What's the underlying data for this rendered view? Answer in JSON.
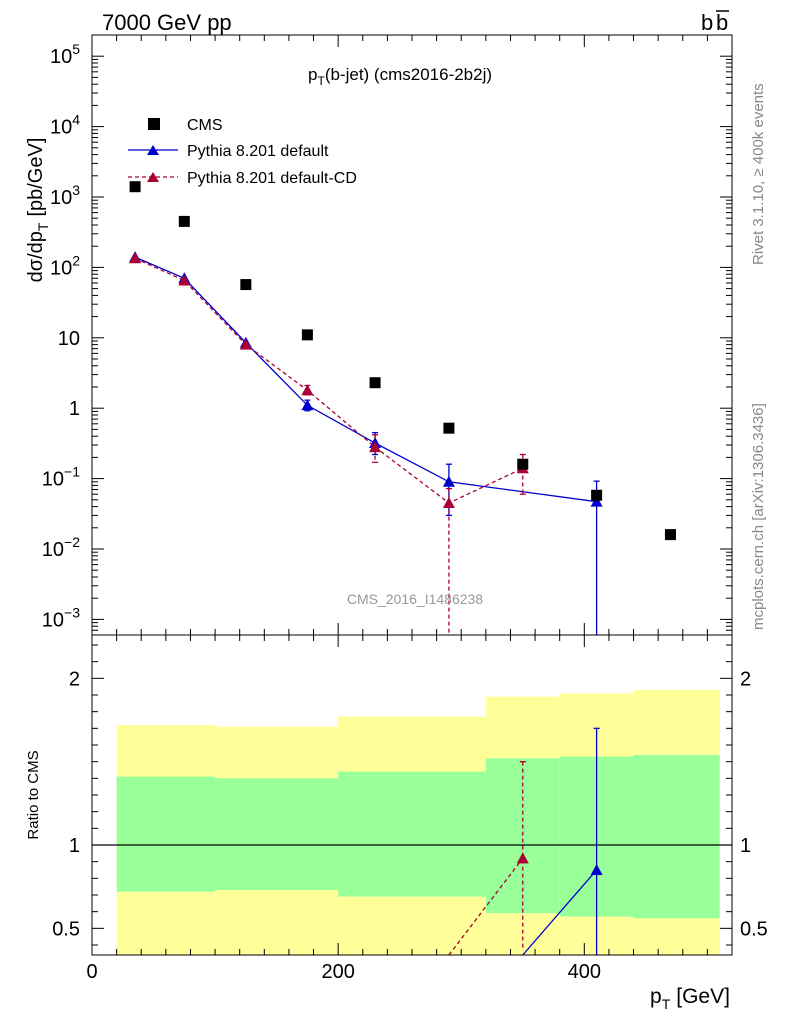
{
  "header": {
    "left": "7000 GeV pp",
    "right_main": "b",
    "right_bar": "b"
  },
  "side_labels": {
    "rivet": "Rivet 3.1.10, ≥ 400k events",
    "mcplots": "mcplots.cern.ch [arXiv:1306.3436]"
  },
  "chart_data": [
    {
      "type": "scatter",
      "title_main": "p",
      "title_sub": "T",
      "title_rest": "(b-jet) (cms2016-2b2j)",
      "watermark": "CMS_2016_I1486238",
      "ylabel_main": "dσ/dp",
      "ylabel_sub": "T",
      "ylabel_rest": "[pb/GeV]",
      "yscale": "log",
      "ylim": [
        0.0006,
        200000
      ],
      "xlim": [
        0,
        520
      ],
      "y_ticks": [
        {
          "v": 100000,
          "label": "10",
          "exp": "5"
        },
        {
          "v": 10000,
          "label": "10",
          "exp": "4"
        },
        {
          "v": 1000,
          "label": "10",
          "exp": "3"
        },
        {
          "v": 100,
          "label": "10",
          "exp": "2"
        },
        {
          "v": 10,
          "label": "10",
          "exp": ""
        },
        {
          "v": 1,
          "label": "1",
          "exp": ""
        },
        {
          "v": 0.1,
          "label": "10",
          "exp": "−1"
        },
        {
          "v": 0.01,
          "label": "10",
          "exp": "−2"
        },
        {
          "v": 0.001,
          "label": "10",
          "exp": "−3"
        }
      ],
      "legend": [
        {
          "label": "CMS",
          "color": "#000000",
          "marker": "square"
        },
        {
          "label": "Pythia 8.201 default",
          "color": "#0000cc",
          "marker": "triangle"
        },
        {
          "label": "Pythia 8.201 default-CD",
          "color": "#aa0033",
          "marker": "triangle"
        }
      ],
      "series": [
        {
          "name": "CMS",
          "color": "#000000",
          "x": [
            35,
            75,
            125,
            175,
            230,
            290,
            350,
            410,
            470
          ],
          "y": [
            1400,
            450,
            57,
            11,
            2.3,
            0.52,
            0.16,
            0.058,
            0.016
          ]
        },
        {
          "name": "Pythia 8.201 default",
          "color": "#0000cc",
          "x": [
            35,
            75,
            125,
            175,
            230,
            290,
            410
          ],
          "y": [
            140,
            70,
            8.5,
            1.1,
            0.32,
            0.09,
            0.047
          ],
          "err_low": [
            140,
            70,
            8.5,
            0.92,
            0.22,
            0.03,
            0.0005
          ],
          "err_high": [
            140,
            70,
            8.5,
            1.3,
            0.45,
            0.16,
            0.092
          ]
        },
        {
          "name": "Pythia 8.201 default-CD",
          "color": "#aa0033",
          "x": [
            35,
            75,
            125,
            175,
            230,
            290,
            350
          ],
          "y": [
            135,
            65,
            8.0,
            1.8,
            0.28,
            0.045,
            0.14
          ],
          "err_low": [
            135,
            65,
            8.0,
            1.55,
            0.17,
            0.0005,
            0.06
          ],
          "err_high": [
            135,
            65,
            8.0,
            2.1,
            0.42,
            0.072,
            0.22
          ]
        }
      ]
    },
    {
      "type": "line",
      "ylabel": "Ratio to CMS",
      "xlabel_main": "p",
      "xlabel_sub": "T",
      "xlabel_rest": "[GeV]",
      "xlim": [
        0,
        520
      ],
      "ylim": [
        0.34,
        2.26
      ],
      "x_ticks": [
        0,
        200,
        400
      ],
      "y_ticks": [
        0.5,
        1,
        2
      ],
      "y_tick_labels": [
        "0.5",
        "1",
        "2"
      ],
      "reference_line": 1,
      "bands": [
        {
          "x0": 20,
          "x1": 100,
          "y_lo": 0.72,
          "y_hi": 1.72,
          "g_lo": 0.72,
          "g_hi": 1.41
        },
        {
          "x0": 100,
          "x1": 200,
          "y_lo": 0.73,
          "y_hi": 1.71,
          "g_lo": 0.73,
          "g_hi": 1.4
        },
        {
          "x0": 200,
          "x1": 320,
          "y_lo": 0.69,
          "y_hi": 1.77,
          "g_lo": 0.69,
          "g_hi": 1.44
        },
        {
          "x0": 320,
          "x1": 380,
          "y_lo": 0.59,
          "y_hi": 1.89,
          "g_lo": 0.59,
          "g_hi": 1.52
        },
        {
          "x0": 380,
          "x1": 440,
          "y_lo": 0.57,
          "y_hi": 1.91,
          "g_lo": 0.57,
          "g_hi": 1.53
        },
        {
          "x0": 440,
          "x1": 510,
          "y_lo": 0.56,
          "y_hi": 1.93,
          "g_lo": 0.56,
          "g_hi": 1.54
        }
      ],
      "series": [
        {
          "name": "Pythia 8.201 default",
          "color": "#0000cc",
          "x": [
            350,
            410
          ],
          "y": [
            0.25,
            0.85
          ],
          "markers": [
            false,
            true
          ],
          "err_low": [
            0.25,
            0.0
          ],
          "err_high": [
            0.25,
            1.7
          ]
        },
        {
          "name": "Pythia 8.201 default-CD",
          "color": "#aa0033",
          "x": [
            290,
            350
          ],
          "y": [
            0.09,
            0.92
          ],
          "markers": [
            false,
            true
          ],
          "err_low": [
            0.09,
            0.38
          ],
          "err_high": [
            0.09,
            1.5
          ]
        }
      ]
    }
  ]
}
